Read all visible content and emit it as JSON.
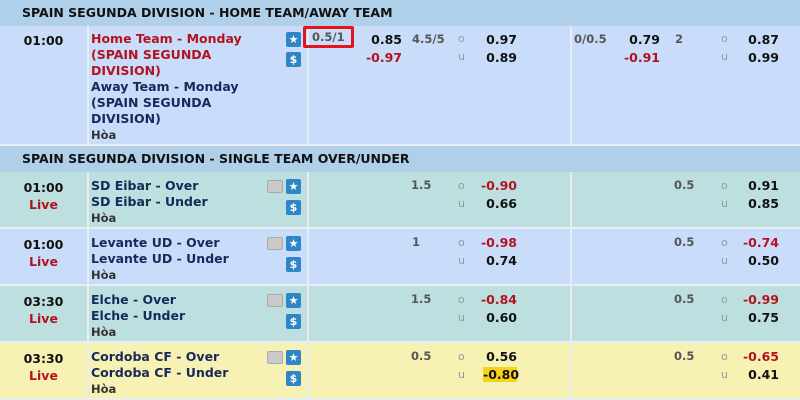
{
  "sections": [
    {
      "title": "SPAIN SEGUNDA DIVISION - HOME TEAM/AWAY TEAM"
    },
    {
      "title": "SPAIN SEGUNDA DIVISION - SINGLE TEAM OVER/UNDER"
    }
  ],
  "match": {
    "time": "01:00",
    "home": "Home Team - Monday (SPAIN SEGUNDA DIVISION)",
    "away": "Away Team - Monday (SPAIN SEGUNDA DIVISION)",
    "draw": "Hòa",
    "ft": {
      "hdp": "0.5/1",
      "home_odds": "0.85",
      "away_odds": "-0.97",
      "ou_line": "4.5/5",
      "over_label": "o",
      "under_label": "u",
      "over": "0.97",
      "under": "0.89"
    },
    "h1": {
      "hdp": "0/0.5",
      "home_odds": "0.79",
      "away_odds": "-0.91",
      "ou_line": "2",
      "over_label": "o",
      "under_label": "u",
      "over": "0.87",
      "under": "0.99"
    }
  },
  "ou_rows": [
    {
      "time": "01:00",
      "status": "Live",
      "over": "SD Eibar - Over",
      "under": "SD Eibar - Under",
      "draw": "Hòa",
      "ft": {
        "line": "1.5",
        "o": "-0.90",
        "u": "0.66"
      },
      "h1": {
        "line": "0.5",
        "o": "0.91",
        "u": "0.85"
      }
    },
    {
      "time": "01:00",
      "status": "Live",
      "over": "Levante UD - Over",
      "under": "Levante UD - Under",
      "draw": "Hòa",
      "ft": {
        "line": "1",
        "o": "-0.98",
        "u": "0.74"
      },
      "h1": {
        "line": "0.5",
        "o": "-0.74",
        "u": "0.50"
      }
    },
    {
      "time": "03:30",
      "status": "Live",
      "over": "Elche - Over",
      "under": "Elche - Under",
      "draw": "Hòa",
      "ft": {
        "line": "1.5",
        "o": "-0.84",
        "u": "0.60"
      },
      "h1": {
        "line": "0.5",
        "o": "-0.99",
        "u": "0.75"
      }
    },
    {
      "time": "03:30",
      "status": "Live",
      "over": "Cordoba CF - Over",
      "under": "Cordoba CF - Under",
      "draw": "Hòa",
      "ft": {
        "line": "0.5",
        "o": "0.56",
        "u": "-0.80"
      },
      "h1": {
        "line": "0.5",
        "o": "-0.65",
        "u": "0.41"
      }
    }
  ],
  "labels": {
    "o": "o",
    "u": "u",
    "dollar": "$"
  },
  "colors": {
    "header": "#afd0e8",
    "row_blue": "#c9dcf9",
    "row_teal": "#bddfdf",
    "row_yellow": "#f7f1b3",
    "negative": "#b3121f",
    "highlight": "#f7d21a"
  }
}
